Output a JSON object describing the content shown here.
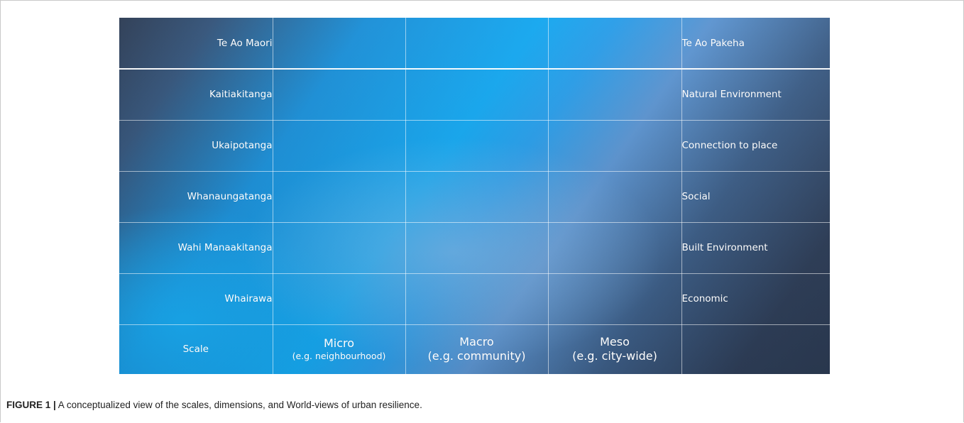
{
  "figure": {
    "header_left": "Te Ao Maori",
    "header_right": "Te Ao Pakeha",
    "dimensions": [
      {
        "maori": "Kaitiakitanga",
        "pakeha": "Natural Environment"
      },
      {
        "maori": "Ukaipotanga",
        "pakeha": "Connection to place"
      },
      {
        "maori": "Whanaungatanga",
        "pakeha": "Social"
      },
      {
        "maori": "Wahi Manaakitanga",
        "pakeha": "Built Environment"
      },
      {
        "maori": "Whairawa",
        "pakeha": "Economic"
      }
    ],
    "scale_label": "Scale",
    "scales": [
      {
        "name": "Micro",
        "example": "(e.g. neighbourhood)"
      },
      {
        "name": "Macro",
        "example": "(e.g. community)"
      },
      {
        "name": "Meso",
        "example": "(e.g. city-wide)"
      }
    ]
  },
  "caption": {
    "label": "FIGURE 1 |",
    "text": " A conceptualized view of the scales, dimensions, and World-views of urban resilience."
  },
  "colors": {
    "dark_slate": "#2d3c54",
    "bright_blue": "#15a7ef",
    "grid_line": "#ffffff"
  }
}
